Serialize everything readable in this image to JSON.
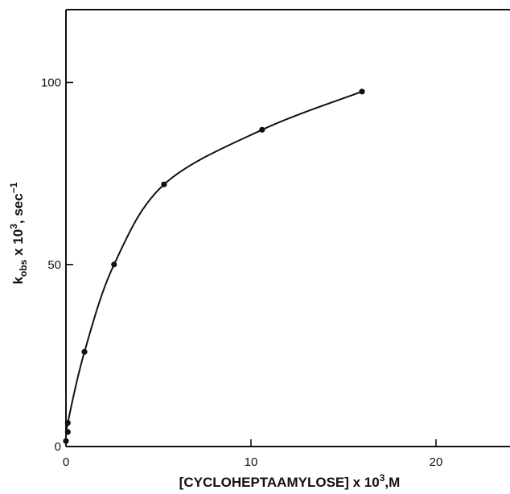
{
  "chart_data": {
    "type": "scatter",
    "x_axis": {
      "label_main": "[CYCLOHEPTAAMYLOSE]",
      "label_mult": " x 10",
      "label_exp": "3",
      "label_unit": ",M",
      "range": [
        0,
        24
      ],
      "ticks": [
        0,
        10,
        20
      ],
      "tick_labels": [
        "0",
        "10",
        "20"
      ]
    },
    "y_axis": {
      "label_k": "k",
      "label_sub": "obs",
      "label_mult": " x 10",
      "label_exp": "3",
      "label_unit": ", sec",
      "label_unit_exp": "−1",
      "range": [
        0,
        120
      ],
      "ticks": [
        0,
        50,
        100
      ],
      "tick_labels": [
        "0",
        "50",
        "100"
      ]
    },
    "grid": false,
    "legend": "none",
    "series": [
      {
        "points": [
          {
            "x": 0.0,
            "y": 1.5
          },
          {
            "x": 0.1,
            "y": 4
          },
          {
            "x": 0.1,
            "y": 6.5
          },
          {
            "x": 1.0,
            "y": 26
          },
          {
            "x": 2.6,
            "y": 50
          },
          {
            "x": 5.3,
            "y": 72
          },
          {
            "x": 10.6,
            "y": 87
          },
          {
            "x": 16.0,
            "y": 97.5
          }
        ]
      }
    ],
    "colors": {
      "ink": "#111111",
      "background": "#ffffff"
    }
  }
}
